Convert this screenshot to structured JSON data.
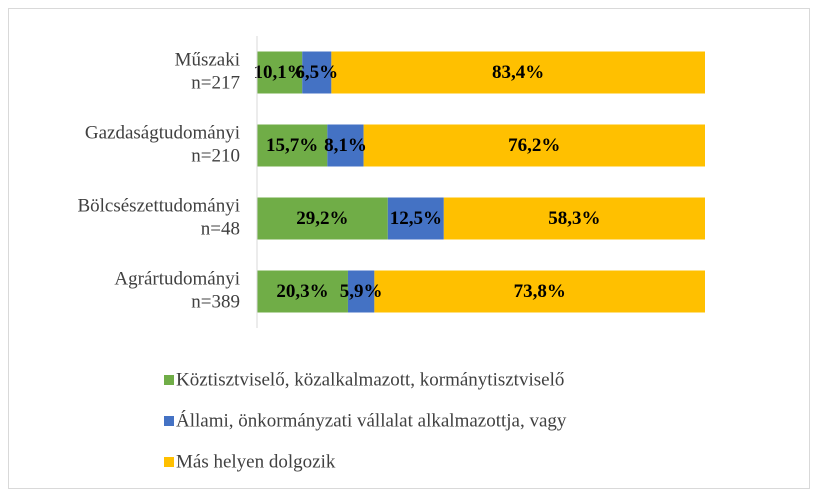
{
  "chart_data": {
    "type": "stacked-bar-horizontal",
    "categories": [
      [
        "Műszaki",
        "n=217"
      ],
      [
        "Gazdaságtudományi",
        "n=210"
      ],
      [
        "Bölcsészettudományi",
        "n=48"
      ],
      [
        "Agrártudományi",
        "n=389"
      ]
    ],
    "xlim": [
      0,
      100
    ],
    "series": [
      {
        "name": "Köztisztviselő, közalkalmazott, kormánytisztviselő",
        "color": "#70ad47",
        "values": [
          10.1,
          15.7,
          29.2,
          20.3
        ],
        "value_labels": [
          "10,1%",
          "15,7%",
          "29,2%",
          "20,3%"
        ]
      },
      {
        "name": "Állami, önkormányzati vállalat alkalmazottja, vagy",
        "color": "#4472c4",
        "values": [
          6.5,
          8.1,
          12.5,
          5.9
        ],
        "value_labels": [
          "6,5%",
          "8,1%",
          "12,5%",
          "5,9%"
        ]
      },
      {
        "name": "Más helyen dolgozik",
        "color": "#ffc000",
        "values": [
          83.4,
          76.2,
          58.3,
          73.8
        ],
        "value_labels": [
          "83,4%",
          "76,2%",
          "58,3%",
          "73,8%"
        ]
      }
    ]
  }
}
